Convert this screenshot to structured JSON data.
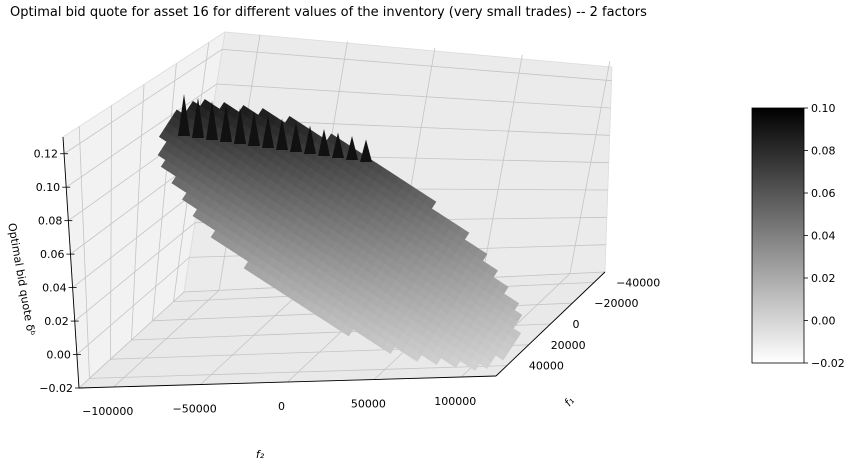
{
  "chart_data": {
    "type": "surface",
    "title": "Optimal bid quote for asset 16 for different values of the inventory (very small trades) -- 2 factors",
    "xlabel": "f₂",
    "ylabel": "f₁",
    "zlabel": "Optimal bid quote δᵇ",
    "xlim": [
      -120000,
      120000
    ],
    "ylim": [
      -50000,
      50000
    ],
    "zlim": [
      -0.02,
      0.13
    ],
    "x_ticks": [
      "−100000",
      "−50000",
      "0",
      "50000",
      "100000"
    ],
    "y_ticks": [
      "−40000",
      "−20000",
      "0",
      "20000",
      "40000"
    ],
    "z_ticks": [
      "−0.02",
      "0.00",
      "0.02",
      "0.04",
      "0.06",
      "0.08",
      "0.10",
      "0.12"
    ],
    "colorbar": {
      "colormap": "gray_r",
      "range": [
        -0.02,
        0.1
      ],
      "ticks": [
        "−0.02",
        "0.00",
        "0.02",
        "0.04",
        "0.06",
        "0.08",
        "0.10"
      ]
    },
    "surface_corners": [
      {
        "f2": -100000,
        "f1": -40000,
        "value": 0.11
      },
      {
        "f2": -100000,
        "f1": 40000,
        "value": 0.04
      },
      {
        "f2": 100000,
        "f1": -40000,
        "value": 0.02
      },
      {
        "f2": 100000,
        "f1": 40000,
        "value": -0.01
      }
    ],
    "grid": true
  }
}
